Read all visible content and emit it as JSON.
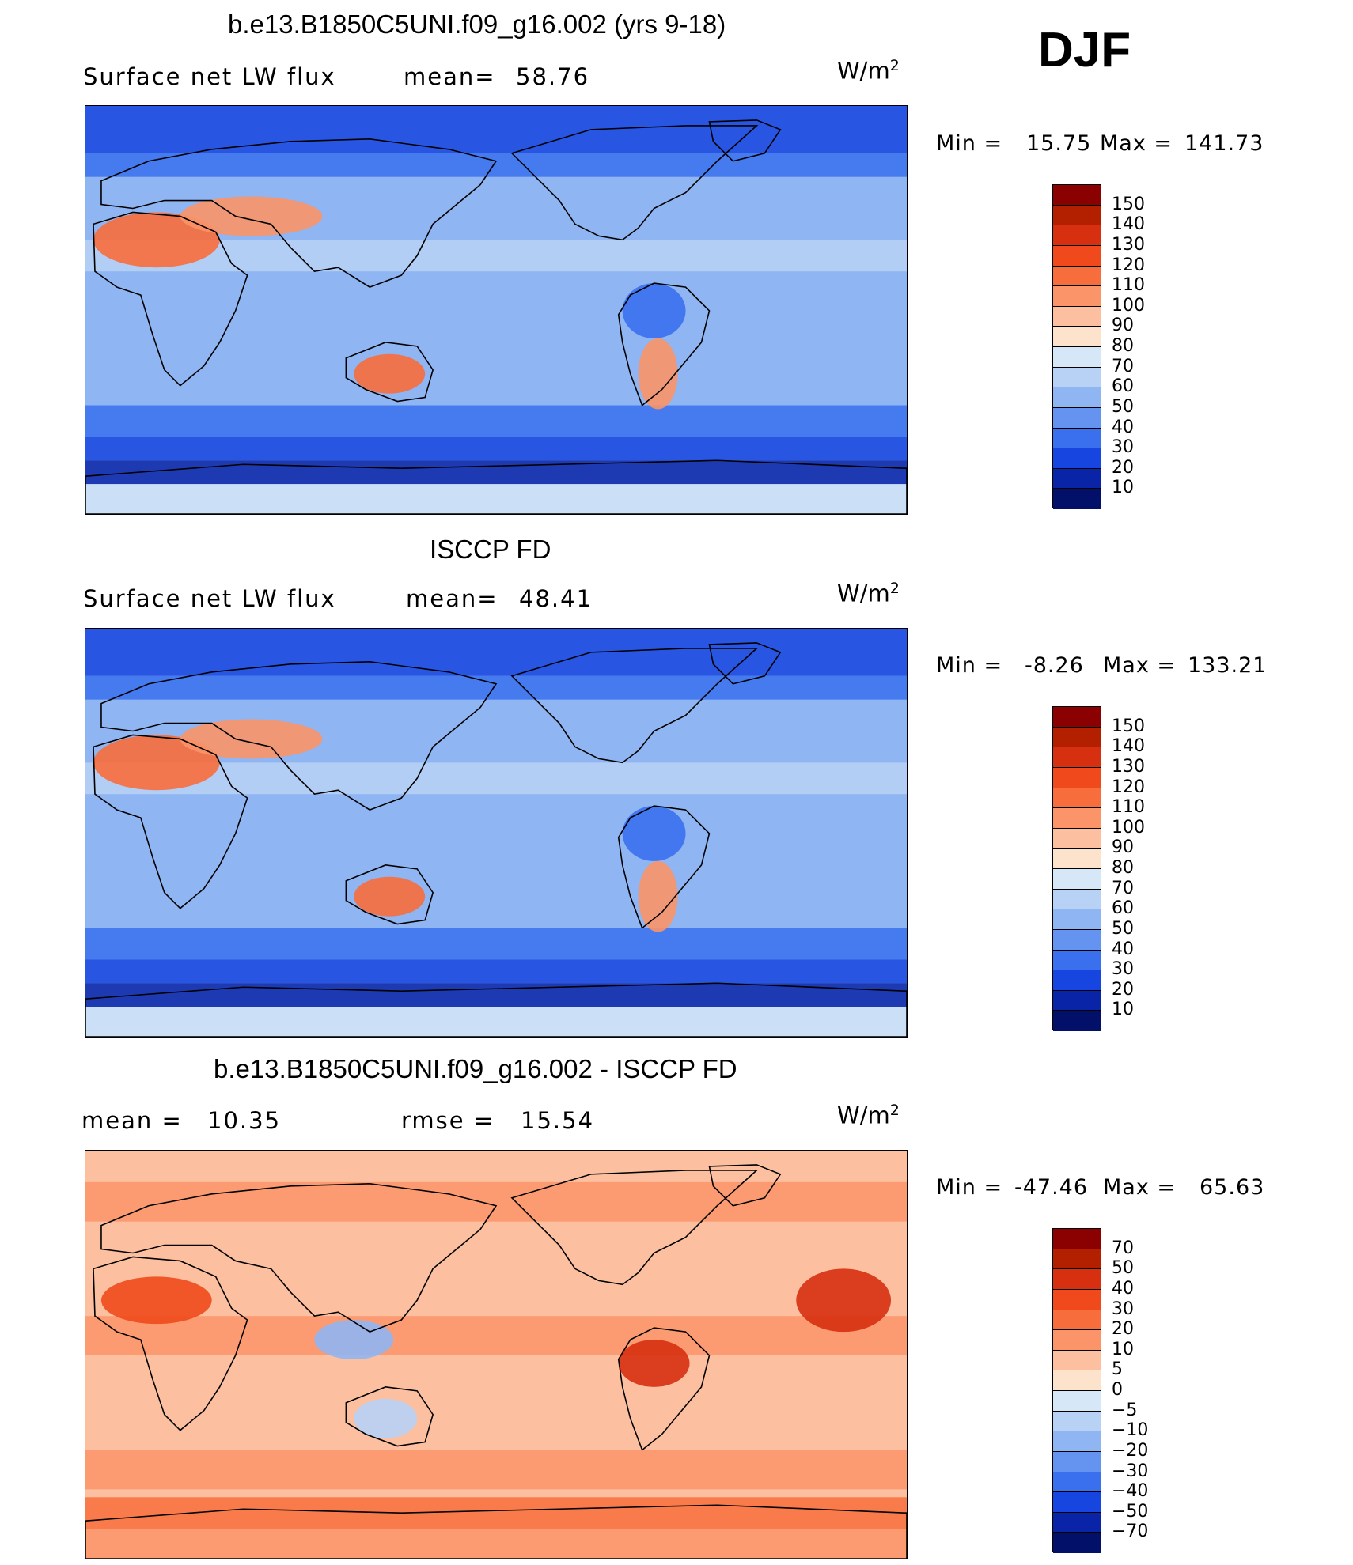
{
  "season": "DJF",
  "panels": [
    {
      "title": "b.e13.B1850C5UNI.f09_g16.002 (yrs 9-18)",
      "left_label": "Surface net LW flux",
      "mid_label": "mean=",
      "mid_value": "58.76",
      "units": "W/m",
      "units_sup": "2",
      "min_label": "Min =",
      "min_value": "15.75",
      "max_label": "Max =",
      "max_value": "141.73",
      "levels": [
        "150",
        "140",
        "130",
        "120",
        "110",
        "100",
        "90",
        "80",
        "70",
        "60",
        "50",
        "40",
        "30",
        "20",
        "10"
      ],
      "colors": [
        "#8b0000",
        "#b22000",
        "#d73010",
        "#f04a1c",
        "#f86d3c",
        "#fb9468",
        "#fcbfa0",
        "#fde2cc",
        "#d6e8f8",
        "#b8d2f6",
        "#8fb5f2",
        "#6494ef",
        "#3a70ee",
        "#1645e0",
        "#0a24a8",
        "#02106a"
      ],
      "map_palette": "positive"
    },
    {
      "title": "ISCCP FD",
      "left_label": "Surface net LW flux",
      "mid_label": "mean=",
      "mid_value": "48.41",
      "units": "W/m",
      "units_sup": "2",
      "min_label": "Min =",
      "min_value": "-8.26",
      "max_label": "Max =",
      "max_value": "133.21",
      "levels": [
        "150",
        "140",
        "130",
        "120",
        "110",
        "100",
        "90",
        "80",
        "70",
        "60",
        "50",
        "40",
        "30",
        "20",
        "10"
      ],
      "colors": [
        "#8b0000",
        "#b22000",
        "#d73010",
        "#f04a1c",
        "#f86d3c",
        "#fb9468",
        "#fcbfa0",
        "#fde2cc",
        "#d6e8f8",
        "#b8d2f6",
        "#8fb5f2",
        "#6494ef",
        "#3a70ee",
        "#1645e0",
        "#0a24a8",
        "#02106a"
      ],
      "map_palette": "positive"
    },
    {
      "title": "b.e13.B1850C5UNI.f09_g16.002 - ISCCP FD",
      "left_label": "mean =",
      "left_value": "10.35",
      "mid_label": "rmse =",
      "mid_value": "15.54",
      "units": "W/m",
      "units_sup": "2",
      "min_label": "Min =",
      "min_value": "-47.46",
      "max_label": "Max =",
      "max_value": "65.63",
      "levels": [
        "70",
        "50",
        "40",
        "30",
        "20",
        "10",
        "5",
        "0",
        "-5",
        "-10",
        "-20",
        "-30",
        "-40",
        "-50",
        "-70"
      ],
      "colors": [
        "#8b0000",
        "#b22000",
        "#d73010",
        "#f04a1c",
        "#f86d3c",
        "#fb9468",
        "#fcbfa0",
        "#fde2cc",
        "#d6e8f8",
        "#b8d2f6",
        "#8fb5f2",
        "#6494ef",
        "#3a70ee",
        "#1645e0",
        "#0a24a8",
        "#02106a"
      ],
      "map_palette": "difference"
    }
  ]
}
